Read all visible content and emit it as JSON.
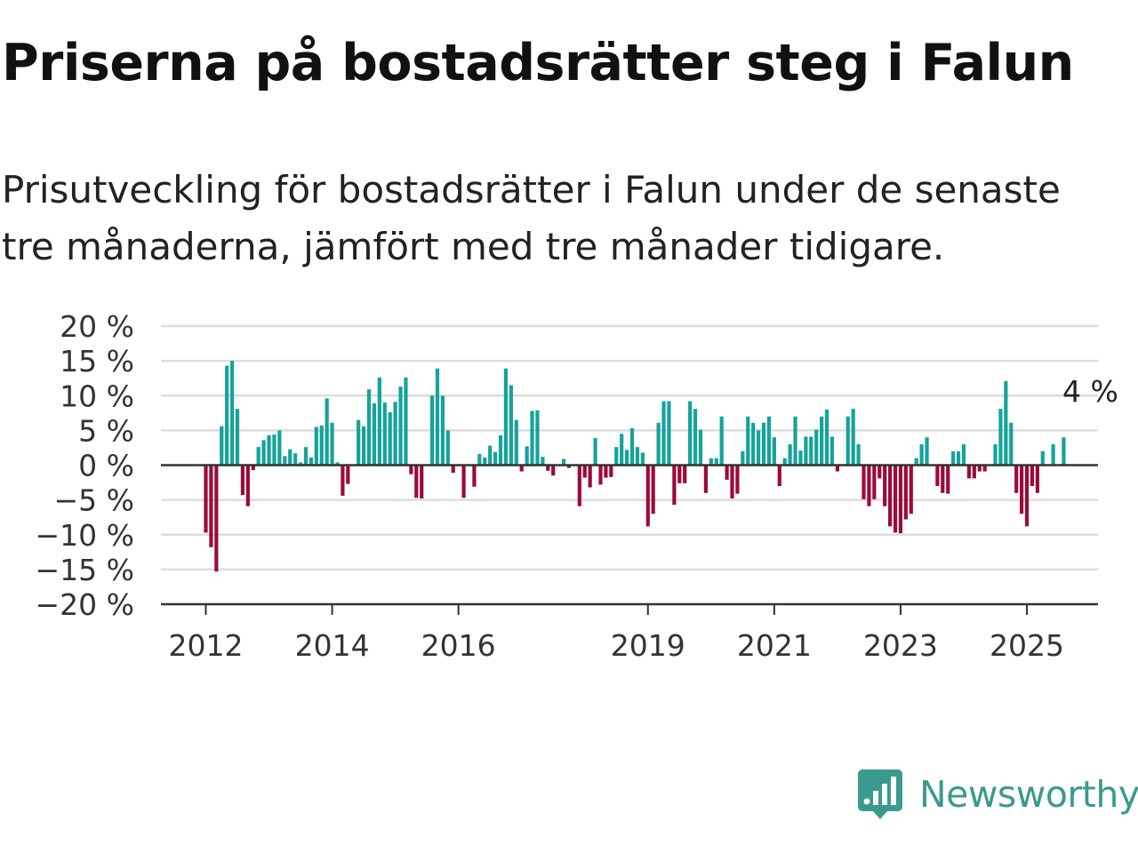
{
  "title": "Priserna på bostadsrätter steg i Falun",
  "subtitle": "Prisutveckling för bostadsrätter i Falun under de senaste tre månaderna, jämfört med tre månader tidigare.",
  "brand": {
    "name": "Newsworthy",
    "color": "#3a9a8e",
    "icon": "newsworthy-logo-icon"
  },
  "colors": {
    "positive": "#15a39a",
    "negative": "#9c0a3c",
    "grid": "#dddddd",
    "axis": "#333333"
  },
  "chart_data": {
    "type": "bar",
    "title": "",
    "xlabel": "",
    "ylabel": "",
    "grid": true,
    "ylim": [
      -20,
      20
    ],
    "yticks": [
      20,
      15,
      10,
      5,
      0,
      -5,
      -10,
      -15,
      -20
    ],
    "ytick_labels": [
      "20 %",
      "15 %",
      "10 %",
      "5 %",
      "0 %",
      "−5 %",
      "−10 %",
      "−15 %",
      "−20 %"
    ],
    "xticks": [
      2012,
      2014,
      2016,
      2019,
      2021,
      2023,
      2025
    ],
    "start": "2012-01",
    "annotation": {
      "text": "4 %",
      "value": 4
    },
    "values": [
      -9.7,
      -11.8,
      -15.3,
      5.6,
      14.3,
      15.0,
      8.1,
      -4.3,
      -5.9,
      -0.7,
      2.6,
      3.6,
      4.3,
      4.4,
      5.0,
      1.3,
      2.3,
      1.7,
      0.4,
      2.6,
      1.1,
      5.5,
      5.7,
      9.6,
      6.1,
      0.4,
      -4.4,
      -2.7,
      0,
      6.5,
      5.6,
      10.9,
      8.9,
      12.6,
      9.0,
      7.6,
      9.1,
      11.3,
      12.6,
      -1.3,
      -4.7,
      -4.8,
      0,
      10.0,
      13.9,
      10.0,
      5.0,
      -1.1,
      0,
      -4.7,
      0,
      -3.1,
      1.6,
      1.1,
      2.8,
      1.9,
      4.3,
      13.9,
      11.5,
      6.5,
      -0.9,
      2.7,
      7.8,
      7.9,
      1.2,
      -0.8,
      -1.5,
      0,
      0.9,
      -0.4,
      0,
      -5.9,
      -1.8,
      -3.2,
      3.9,
      -2.8,
      -1.8,
      -1.7,
      2.6,
      4.5,
      2.2,
      5.3,
      2.6,
      1.8,
      -8.8,
      -7.0,
      6.1,
      9.2,
      9.2,
      -5.7,
      -2.6,
      -2.6,
      9.2,
      8.1,
      5.1,
      -4.0,
      1.0,
      1.0,
      7.0,
      -2.1,
      -4.8,
      -4.1,
      2.0,
      7.0,
      6.1,
      5.0,
      6.1,
      7.0,
      4.0,
      -3.0,
      1.0,
      3.0,
      7.0,
      2.1,
      4.1,
      4.1,
      5.1,
      7.0,
      8.0,
      4.1,
      -0.9,
      0,
      7.0,
      8.1,
      3.0,
      -4.9,
      -5.9,
      -4.9,
      -1.9,
      -5.9,
      -8.8,
      -9.7,
      -9.8,
      -7.8,
      -7.0,
      1.0,
      3.0,
      4.0,
      0,
      -3.0,
      -4.0,
      -4.1,
      2.0,
      2.0,
      3.0,
      -1.9,
      -1.9,
      -0.9,
      -0.9,
      0,
      3.0,
      8.1,
      12.1,
      6.1,
      -4.0,
      -7.0,
      -8.8,
      -3.0,
      -4.0,
      2.0,
      0,
      3.0,
      0,
      4.0
    ]
  }
}
